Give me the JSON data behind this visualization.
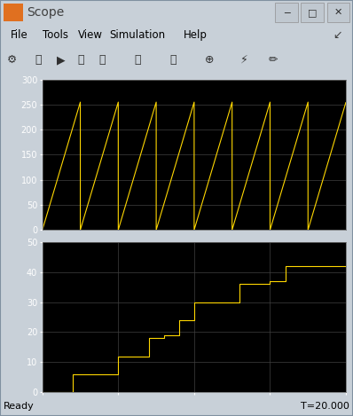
{
  "title": "Scope",
  "menu_items": [
    "File",
    "Tools",
    "View",
    "Simulation",
    "Help"
  ],
  "status_left": "Ready",
  "status_right": "T=20.000",
  "bg_color": "#000000",
  "plot_bg": "#000000",
  "window_bg": "#c8d0d8",
  "line_color": "#ffd700",
  "grid_color": "#404040",
  "top_plot": {
    "ylim": [
      0,
      300
    ],
    "yticks": [
      0,
      50,
      100,
      150,
      200,
      250,
      300
    ],
    "xlim": [
      0,
      20
    ],
    "xticks": []
  },
  "bottom_plot": {
    "ylim": [
      0,
      50
    ],
    "yticks": [
      0,
      10,
      20,
      30,
      40,
      50
    ],
    "xlim": [
      0,
      20
    ],
    "xticks": [
      0,
      5,
      10,
      15,
      20
    ]
  },
  "sawtooth_period": 2.5,
  "sawtooth_max": 255,
  "sawtooth_total_time": 20,
  "step_data_x": [
    0,
    2,
    2,
    4,
    4,
    5,
    5,
    7,
    7,
    8,
    8,
    9,
    9,
    10,
    10,
    12,
    12,
    13,
    13,
    15,
    15,
    16,
    16,
    18,
    18,
    19,
    19,
    20
  ],
  "step_data_y": [
    0,
    0,
    6,
    6,
    6,
    6,
    12,
    12,
    18,
    18,
    19,
    19,
    24,
    24,
    30,
    30,
    30,
    30,
    36,
    36,
    37,
    37,
    42,
    42,
    42,
    42,
    42,
    42
  ]
}
